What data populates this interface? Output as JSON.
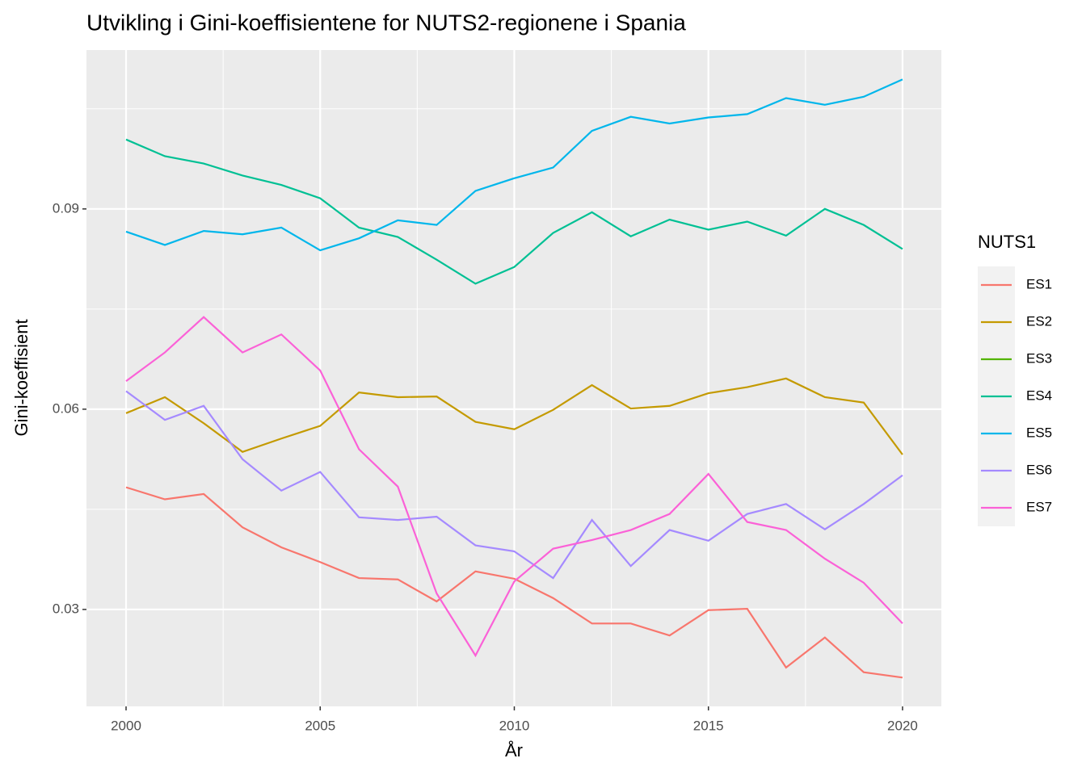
{
  "chart_data": {
    "type": "line",
    "title": "Utvikling i Gini-koeffisientene for NUTS2-regionene i Spania",
    "x_label": "År",
    "y_label": "Gini-koeffisient",
    "legend_title": "NUTS1",
    "legend_position": "right",
    "grid": true,
    "x": [
      2000,
      2001,
      2002,
      2003,
      2004,
      2005,
      2006,
      2007,
      2008,
      2009,
      2010,
      2011,
      2012,
      2013,
      2014,
      2015,
      2016,
      2017,
      2018,
      2019,
      2020
    ],
    "xlim": [
      1998.98,
      2021
    ],
    "xticks": [
      2000,
      2005,
      2010,
      2015,
      2020
    ],
    "x_minor_ticks": [
      2002.5,
      2007.5,
      2012.5,
      2017.5
    ],
    "ylim": [
      0.01548,
      0.1138
    ],
    "yticks": [
      0.03,
      0.06,
      0.09
    ],
    "y_minor_ticks": [
      0.045,
      0.075,
      0.105
    ],
    "series": [
      {
        "name": "ES1",
        "color": "#F8766D",
        "values": [
          0.0483,
          0.0465,
          0.0473,
          0.0423,
          0.0393,
          0.0371,
          0.0347,
          0.0345,
          0.0312,
          0.0357,
          0.0346,
          0.0317,
          0.0279,
          0.0279,
          0.0261,
          0.0299,
          0.0301,
          0.0213,
          0.0258,
          0.0206,
          0.0198
        ]
      },
      {
        "name": "ES2",
        "color": "#C49A00",
        "values": [
          0.0594,
          0.0618,
          0.0579,
          0.0536,
          0.0556,
          0.0575,
          0.0625,
          0.0618,
          0.0619,
          0.0581,
          0.057,
          0.0599,
          0.0636,
          0.0601,
          0.0605,
          0.0624,
          0.0633,
          0.0646,
          0.0618,
          0.061,
          0.0532
        ]
      },
      {
        "name": "ES3",
        "color": "#53B400",
        "values": [
          null,
          null,
          null,
          null,
          null,
          null,
          null,
          null,
          null,
          null,
          null,
          null,
          null,
          null,
          null,
          null,
          null,
          null,
          null,
          null,
          null
        ]
      },
      {
        "name": "ES4",
        "color": "#00C094",
        "values": [
          0.1004,
          0.0979,
          0.0968,
          0.095,
          0.0936,
          0.0916,
          0.0872,
          0.0858,
          0.0824,
          0.0788,
          0.0813,
          0.0864,
          0.0895,
          0.0859,
          0.0884,
          0.0869,
          0.0881,
          0.086,
          0.09,
          0.0876,
          0.084
        ]
      },
      {
        "name": "ES5",
        "color": "#00B6EB",
        "values": [
          0.0866,
          0.0846,
          0.0867,
          0.0862,
          0.0872,
          0.0838,
          0.0856,
          0.0883,
          0.0876,
          0.0927,
          0.0946,
          0.0962,
          0.1017,
          0.1038,
          0.1028,
          0.1037,
          0.1042,
          0.1066,
          0.1056,
          0.1068,
          0.1094
        ]
      },
      {
        "name": "ES6",
        "color": "#A58AFF",
        "values": [
          0.0627,
          0.0584,
          0.0605,
          0.0525,
          0.0478,
          0.0506,
          0.0438,
          0.0434,
          0.0439,
          0.0396,
          0.0387,
          0.0347,
          0.0434,
          0.0365,
          0.0419,
          0.0403,
          0.0443,
          0.0458,
          0.042,
          0.0458,
          0.0501
        ]
      },
      {
        "name": "ES7",
        "color": "#FB61D7",
        "values": [
          0.0642,
          0.0685,
          0.0738,
          0.0685,
          0.0712,
          0.0658,
          0.054,
          0.0484,
          0.0324,
          0.0231,
          0.0342,
          0.0391,
          0.0404,
          0.0419,
          0.0443,
          0.0503,
          0.0431,
          0.0419,
          0.0376,
          0.034,
          0.0279
        ]
      }
    ]
  }
}
